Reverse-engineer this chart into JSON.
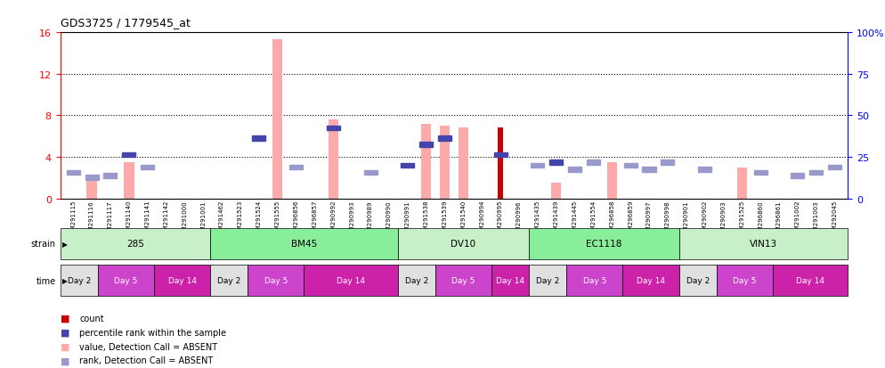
{
  "title": "GDS3725 / 1779545_at",
  "samples": [
    "GSM291115",
    "GSM291116",
    "GSM291117",
    "GSM291140",
    "GSM291141",
    "GSM291142",
    "GSM291000",
    "GSM291001",
    "GSM291462",
    "GSM291523",
    "GSM291524",
    "GSM291555",
    "GSM296856",
    "GSM296857",
    "GSM290992",
    "GSM290993",
    "GSM290989",
    "GSM290990",
    "GSM290991",
    "GSM291538",
    "GSM291539",
    "GSM291540",
    "GSM290994",
    "GSM290995",
    "GSM290996",
    "GSM291435",
    "GSM291439",
    "GSM291445",
    "GSM291554",
    "GSM296858",
    "GSM296859",
    "GSM290997",
    "GSM290998",
    "GSM290901",
    "GSM290902",
    "GSM290903",
    "GSM291525",
    "GSM296860",
    "GSM296861",
    "GSM291002",
    "GSM291003",
    "GSM292045"
  ],
  "pink_bars": [
    0,
    2.2,
    0,
    3.5,
    0,
    0,
    0,
    0,
    0,
    0,
    0,
    15.3,
    0,
    0,
    7.6,
    0,
    0,
    0,
    0,
    7.2,
    7.0,
    6.8,
    0,
    0,
    0,
    0,
    1.5,
    0,
    0,
    3.5,
    0,
    0,
    0,
    0,
    0,
    0,
    3.0,
    0,
    0,
    0,
    0,
    0
  ],
  "dark_red_bars": [
    0,
    0,
    0,
    0,
    0,
    0,
    0,
    0,
    0,
    0,
    0,
    0,
    0,
    0,
    0,
    0,
    0,
    0,
    0,
    0,
    0,
    0,
    0,
    6.8,
    0,
    0,
    0,
    0,
    0,
    0,
    0,
    0,
    0,
    0,
    0,
    0,
    0,
    0,
    0,
    0,
    0,
    0
  ],
  "blue_squares": [
    0,
    0,
    0,
    4.2,
    0,
    0,
    0,
    0,
    0,
    0,
    5.8,
    0,
    0,
    0,
    6.8,
    0,
    0,
    0,
    3.2,
    5.2,
    5.8,
    0,
    0,
    4.2,
    0,
    0,
    3.5,
    0,
    0,
    0,
    0,
    0,
    0,
    0,
    0,
    0,
    0,
    0,
    0,
    0,
    0,
    0
  ],
  "light_blue_squares": [
    2.5,
    2.0,
    2.2,
    0,
    3.0,
    0,
    0,
    0,
    0,
    0,
    0,
    0,
    3.0,
    0,
    0,
    0,
    2.5,
    0,
    0,
    0,
    0,
    0,
    0,
    0,
    0,
    3.2,
    0,
    2.8,
    3.5,
    0,
    3.2,
    2.8,
    3.5,
    0,
    2.8,
    0,
    0,
    2.5,
    0,
    2.2,
    2.5,
    3.0
  ],
  "strains": [
    {
      "label": "285",
      "start": 0,
      "end": 7,
      "color": "#AAEEBB"
    },
    {
      "label": "BM45",
      "start": 8,
      "end": 17,
      "color": "#88EE99"
    },
    {
      "label": "DV10",
      "start": 18,
      "end": 24,
      "color": "#88EE99"
    },
    {
      "label": "EC1118",
      "start": 25,
      "end": 32,
      "color": "#88EE99"
    },
    {
      "label": "VIN13",
      "start": 33,
      "end": 41,
      "color": "#88EE99"
    }
  ],
  "time_groups": [
    {
      "label": "Day 2",
      "start": 0,
      "end": 1,
      "color": "#E0E0E0"
    },
    {
      "label": "Day 5",
      "start": 2,
      "end": 4,
      "color": "#CC55CC"
    },
    {
      "label": "Day 14",
      "start": 5,
      "end": 7,
      "color": "#DD33BB"
    },
    {
      "label": "Day 2",
      "start": 8,
      "end": 9,
      "color": "#E0E0E0"
    },
    {
      "label": "Day 5",
      "start": 10,
      "end": 12,
      "color": "#CC55CC"
    },
    {
      "label": "Day 14",
      "start": 13,
      "end": 17,
      "color": "#DD33BB"
    },
    {
      "label": "Day 2",
      "start": 18,
      "end": 19,
      "color": "#E0E0E0"
    },
    {
      "label": "Day 5",
      "start": 20,
      "end": 22,
      "color": "#CC55CC"
    },
    {
      "label": "Day 14",
      "start": 23,
      "end": 24,
      "color": "#DD33BB"
    },
    {
      "label": "Day 2",
      "start": 25,
      "end": 26,
      "color": "#E0E0E0"
    },
    {
      "label": "Day 5",
      "start": 27,
      "end": 29,
      "color": "#CC55CC"
    },
    {
      "label": "Day 14",
      "start": 30,
      "end": 32,
      "color": "#DD33BB"
    },
    {
      "label": "Day 2",
      "start": 33,
      "end": 34,
      "color": "#E0E0E0"
    },
    {
      "label": "Day 5",
      "start": 35,
      "end": 37,
      "color": "#CC55CC"
    },
    {
      "label": "Day 14",
      "start": 38,
      "end": 41,
      "color": "#DD33BB"
    }
  ],
  "ylim_left": [
    0,
    16
  ],
  "ylim_right": [
    0,
    100
  ],
  "yticks_left": [
    0,
    4,
    8,
    12,
    16
  ],
  "ytick_labels_left": [
    "0",
    "4",
    "8",
    "12",
    "16"
  ],
  "yticks_right": [
    0,
    25,
    50,
    75,
    100
  ],
  "ytick_labels_right": [
    "0",
    "25",
    "50",
    "75",
    "100%"
  ],
  "bar_width": 0.55,
  "pink_color": "#FFAAAA",
  "dark_red_color": "#CC0000",
  "blue_color": "#4444AA",
  "light_blue_color": "#9999CC",
  "background_color": "#ffffff",
  "grid_lines": [
    4,
    8,
    12
  ],
  "legend_items": [
    {
      "color": "#CC0000",
      "label": "count"
    },
    {
      "color": "#4444AA",
      "label": "percentile rank within the sample"
    },
    {
      "color": "#FFAAAA",
      "label": "value, Detection Call = ABSENT"
    },
    {
      "color": "#9999CC",
      "label": "rank, Detection Call = ABSENT"
    }
  ]
}
